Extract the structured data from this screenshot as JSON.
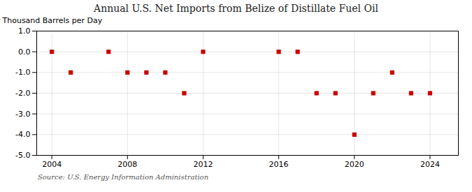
{
  "chart_data": {
    "type": "scatter",
    "title": "Annual U.S. Net Imports from Belize of Distillate Fuel Oil",
    "ylabel": "Thousand Barrels per Day",
    "source": "Source: U.S. Energy Information Administration",
    "x": [
      2004,
      2005,
      2006,
      2007,
      2008,
      2009,
      2010,
      2011,
      2012,
      2013,
      2014,
      2015,
      2016,
      2017,
      2018,
      2019,
      2020,
      2021,
      2022,
      2023,
      2024
    ],
    "values": [
      0,
      -1,
      null,
      0,
      -1,
      -1,
      -1,
      -2,
      0,
      null,
      null,
      null,
      0,
      0,
      -2,
      -2,
      -4,
      -2,
      -1,
      -2,
      -2
    ],
    "color": "#cc0000",
    "marker": "square",
    "xlim": [
      2003.2,
      2025.5
    ],
    "xticks": [
      2004,
      2008,
      2012,
      2016,
      2020,
      2024
    ],
    "ylim": [
      -5.0,
      1.0
    ],
    "yticks": [
      {
        "value": 1.0,
        "label": "1.0"
      },
      {
        "value": 0.0,
        "label": "0.0"
      },
      {
        "value": -1.0,
        "label": "-1.0"
      },
      {
        "value": -2.0,
        "label": "-2.0"
      },
      {
        "value": -3.0,
        "label": "-3.0"
      },
      {
        "value": -4.0,
        "label": "-4.0"
      },
      {
        "value": -5.0,
        "label": "-5.0"
      }
    ],
    "grid": true
  }
}
